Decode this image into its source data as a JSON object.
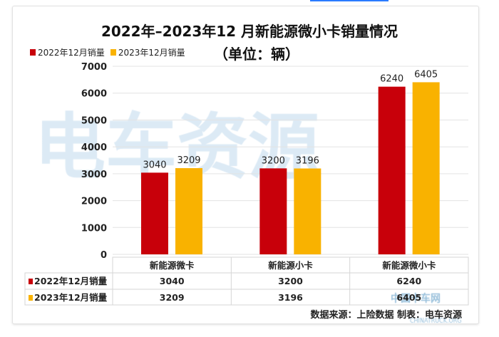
{
  "chart_data": {
    "type": "bar",
    "title": "2022年–2023年12 月新能源微小卡销量情况",
    "subtitle": "（单位：辆）",
    "categories": [
      "新能源微卡",
      "新能源小卡",
      "新能源微小卡"
    ],
    "series": [
      {
        "name": "2022年12月销量",
        "values": [
          3040,
          3200,
          6240
        ],
        "color": "#c8000a"
      },
      {
        "name": "2023年12月销量",
        "values": [
          3209,
          3196,
          6405
        ],
        "color": "#f9b200"
      }
    ],
    "yticks": [
      0,
      1000,
      2000,
      3000,
      4000,
      5000,
      6000,
      7000
    ],
    "ylim": [
      0,
      7000
    ],
    "grid": true,
    "legend": "top-left",
    "data_table": true
  },
  "source": "数据来源：上险数据   制表：电车资源",
  "watermarks": {
    "main": "电车资源",
    "logo": "中国卡车网",
    "logo_sub": "CHINATRUCK.ORG"
  }
}
